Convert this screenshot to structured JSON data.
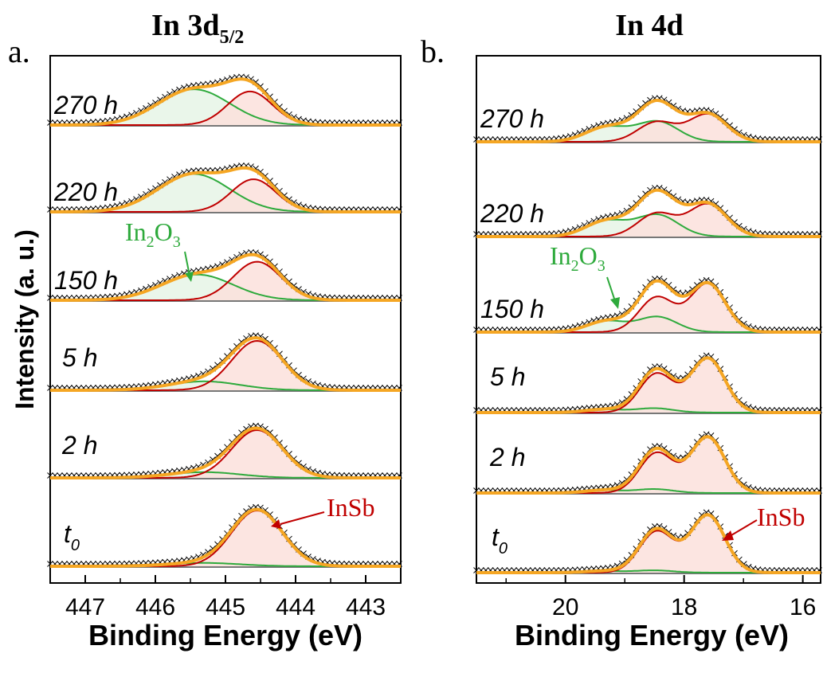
{
  "chart_data": [
    {
      "type": "line",
      "panel_letter": "a.",
      "title_main": "In 3d",
      "title_sub": "5/2",
      "xlabel": "Binding Energy (eV)",
      "ylabel": "Intensity (a. u.)",
      "xlim": [
        447.5,
        442.5
      ],
      "x_reversed": true,
      "xticks": [
        "447",
        "446",
        "445",
        "444",
        "443"
      ],
      "xtick_values": [
        447,
        446,
        445,
        444,
        443
      ],
      "y_ticks_shown": false,
      "components": [
        {
          "key": "InSb",
          "label": "InSb",
          "color": "#c00000",
          "fill": "#fbe0dc"
        },
        {
          "key": "In2O3",
          "label_main": "In",
          "label_sub1": "2",
          "label_mid": "O",
          "label_sub2": "3",
          "color": "#2eaa3c",
          "fill": "#e6f4e6"
        },
        {
          "key": "envelope",
          "color": "#f5a623"
        },
        {
          "key": "data",
          "marker": "x",
          "color": "#000000"
        }
      ],
      "series": [
        {
          "name": "270 h",
          "centers": [
            444.65,
            445.45
          ],
          "fwhm": [
            0.75,
            1.2
          ],
          "heights": [
            0.62,
            0.66
          ]
        },
        {
          "name": "220 h",
          "centers": [
            444.6,
            445.45
          ],
          "fwhm": [
            0.75,
            1.2
          ],
          "heights": [
            0.62,
            0.72
          ]
        },
        {
          "name": "150 h",
          "centers": [
            444.55,
            445.4
          ],
          "fwhm": [
            0.8,
            1.2
          ],
          "heights": [
            0.78,
            0.52
          ]
        },
        {
          "name": "5 h",
          "centers": [
            444.55,
            445.3
          ],
          "fwhm": [
            0.85,
            1.2
          ],
          "heights": [
            1.0,
            0.18
          ]
        },
        {
          "name": "2 h",
          "centers": [
            444.55,
            445.3
          ],
          "fwhm": [
            0.85,
            1.2
          ],
          "heights": [
            1.0,
            0.12
          ]
        },
        {
          "name": "t0",
          "label_main": "t",
          "label_sub": "0",
          "centers": [
            444.55,
            445.3
          ],
          "fwhm": [
            0.85,
            1.2
          ],
          "heights": [
            1.0,
            0.06
          ]
        }
      ]
    },
    {
      "type": "line",
      "panel_letter": "b.",
      "title_main": "In 4d",
      "xlabel": "Binding Energy (eV)",
      "xlim": [
        21.5,
        15.7
      ],
      "x_reversed": true,
      "xticks": [
        "20",
        "18",
        "16"
      ],
      "xtick_values": [
        20,
        18,
        16
      ],
      "y_ticks_shown": false,
      "spin_orbit_split_eV": 0.86,
      "components": [
        {
          "key": "InSb",
          "label": "InSb",
          "color": "#c00000",
          "fill": "#fbe0dc"
        },
        {
          "key": "In2O3",
          "label_main": "In",
          "label_sub1": "2",
          "label_mid": "O",
          "label_sub2": "3",
          "color": "#2eaa3c",
          "fill": "#e6f4e6"
        },
        {
          "key": "envelope",
          "color": "#f5a623"
        },
        {
          "key": "data",
          "marker": "x",
          "color": "#000000"
        }
      ],
      "series": [
        {
          "name": "270 h",
          "insb_center": 17.6,
          "insb_height": 0.75,
          "ox_center": 18.45,
          "ox_height": 0.55,
          "fwhm": 0.75
        },
        {
          "name": "220 h",
          "insb_center": 17.6,
          "insb_height": 0.78,
          "ox_center": 18.45,
          "ox_height": 0.52,
          "fwhm": 0.75
        },
        {
          "name": "150 h",
          "insb_center": 17.6,
          "insb_height": 0.95,
          "ox_center": 18.45,
          "ox_height": 0.3,
          "fwhm": 0.7
        },
        {
          "name": "5 h",
          "insb_center": 17.6,
          "insb_height": 1.0,
          "ox_center": 18.5,
          "ox_height": 0.08,
          "fwhm": 0.68
        },
        {
          "name": "2 h",
          "insb_center": 17.6,
          "insb_height": 1.0,
          "ox_center": 18.5,
          "ox_height": 0.07,
          "fwhm": 0.68
        },
        {
          "name": "t0",
          "label_main": "t",
          "label_sub": "0",
          "insb_center": 17.6,
          "insb_height": 1.0,
          "ox_center": 18.5,
          "ox_height": 0.04,
          "fwhm": 0.68
        }
      ]
    }
  ]
}
